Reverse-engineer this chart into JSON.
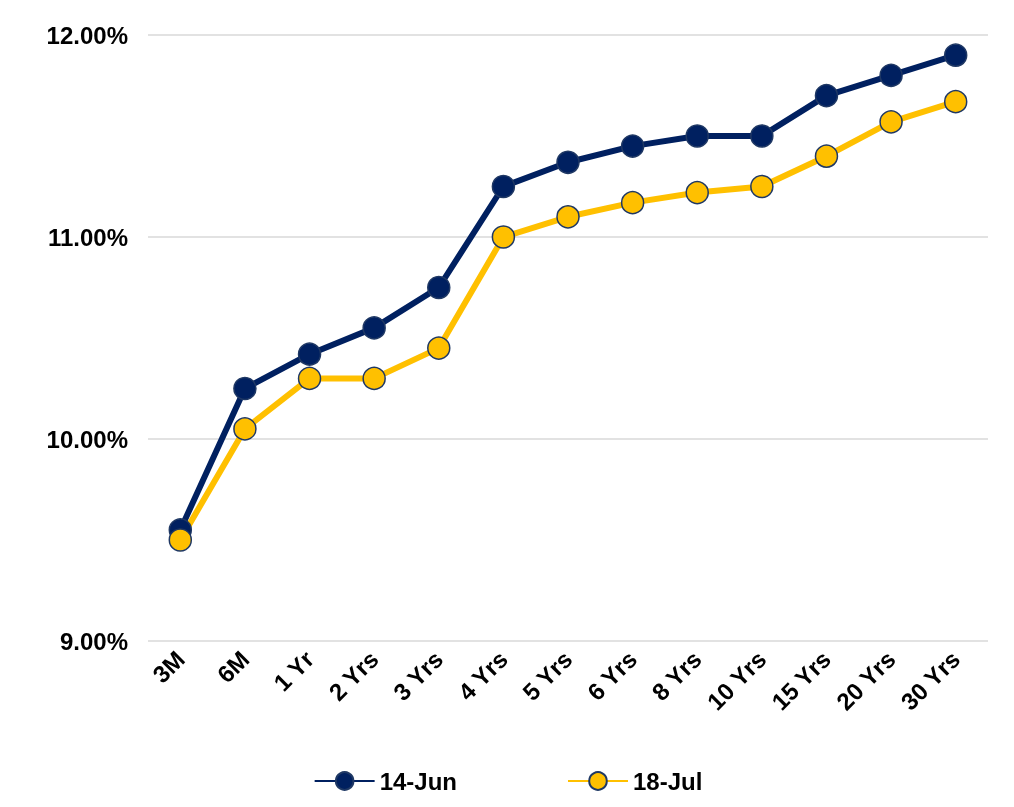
{
  "chart_data": {
    "type": "line",
    "categories": [
      "3M",
      "6M",
      "1 Yr",
      "2 Yrs",
      "3 Yrs",
      "4 Yrs",
      "5 Yrs",
      "6 Yrs",
      "8 Yrs",
      "10 Yrs",
      "15 Yrs",
      "20 Yrs",
      "30 Yrs"
    ],
    "series": [
      {
        "name": "14-Jun",
        "color": "#002060",
        "values": [
          9.55,
          10.25,
          10.42,
          10.55,
          10.75,
          11.25,
          11.37,
          11.45,
          11.5,
          11.5,
          11.7,
          11.8,
          11.9
        ]
      },
      {
        "name": "18-Jul",
        "color": "#ffc000",
        "values": [
          9.5,
          10.05,
          10.3,
          10.3,
          10.45,
          11.0,
          11.1,
          11.17,
          11.22,
          11.25,
          11.4,
          11.57,
          11.67
        ]
      }
    ],
    "ylim": [
      9,
      12
    ],
    "yticks": [
      {
        "value": 9,
        "label": "9.00%"
      },
      {
        "value": 10,
        "label": "10.00%"
      },
      {
        "value": 11,
        "label": "11.00%"
      },
      {
        "value": 12,
        "label": "12.00%"
      }
    ],
    "grid": "y",
    "legend": "bottom",
    "marker": "circle",
    "line_style": "solid"
  }
}
